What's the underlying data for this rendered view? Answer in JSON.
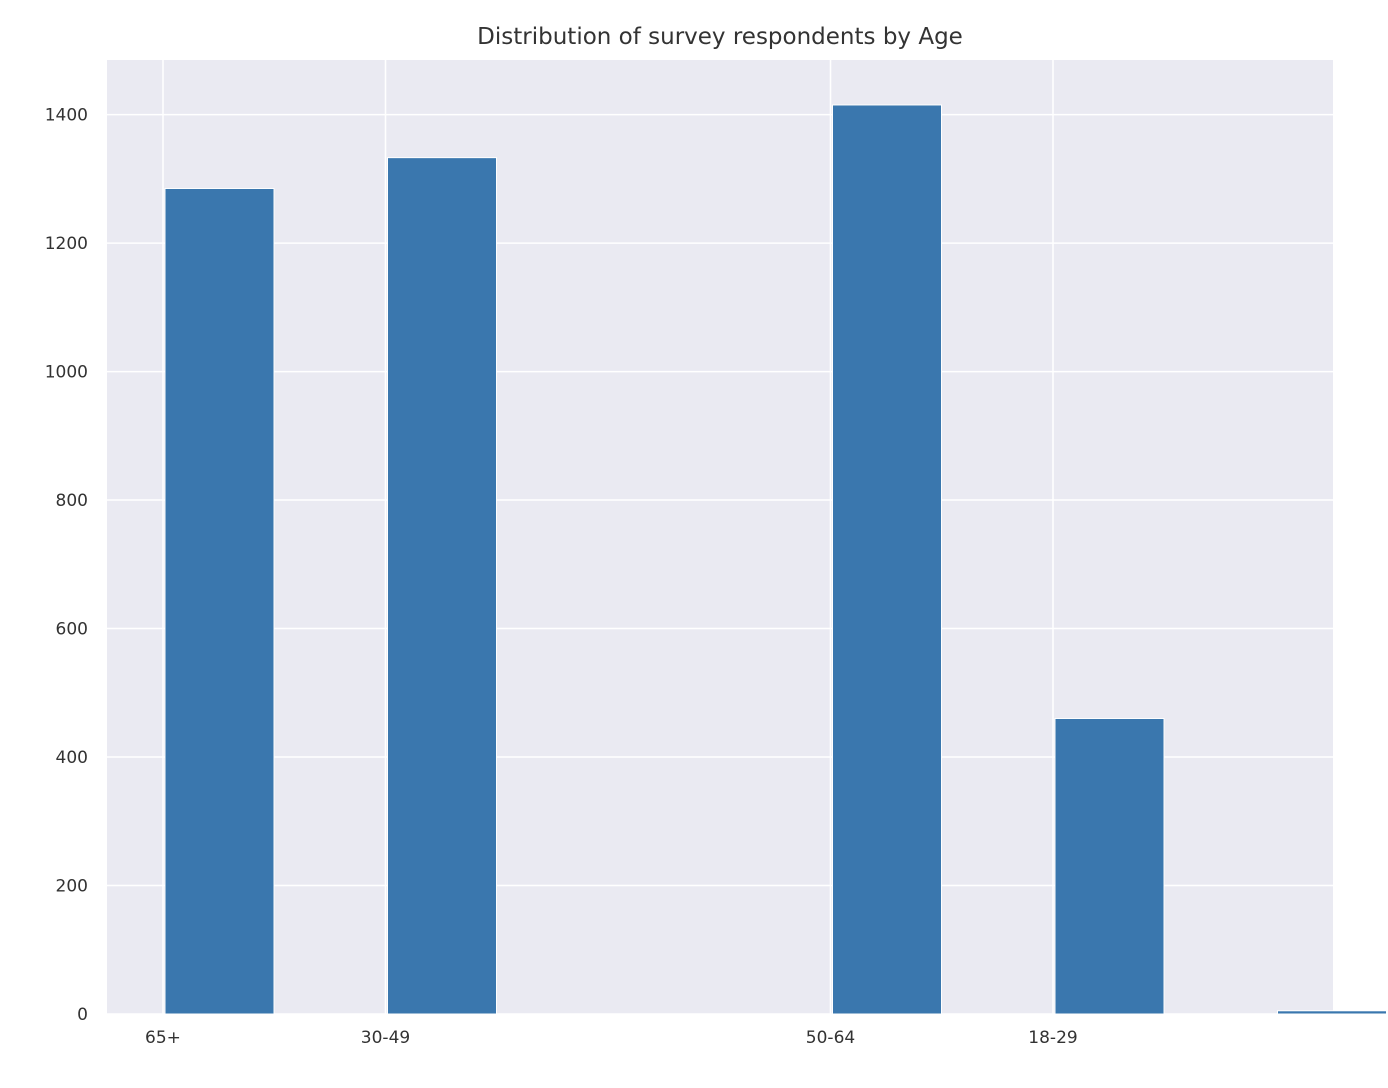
{
  "chart_data": {
    "type": "bar",
    "title": "Distribution of survey respondents by Age",
    "xlabel": "",
    "ylabel": "",
    "bins": [
      {
        "label": "65+",
        "value": 1285
      },
      {
        "label": "30-49",
        "value": 1333
      },
      {
        "label": "",
        "value": 0
      },
      {
        "label": "50-64",
        "value": 1415
      },
      {
        "label": "18-29",
        "value": 460
      },
      {
        "label": "",
        "value": 5
      }
    ],
    "xticks": [
      "65+",
      "30-49",
      "50-64",
      "18-29"
    ],
    "yticks": [
      0,
      200,
      400,
      600,
      800,
      1000,
      1200,
      1400
    ],
    "ylim": [
      0,
      1485
    ],
    "grid": true,
    "colors": {
      "bar": "#3a77ae",
      "axes_background": "#eaeaf2",
      "grid": "#ffffff",
      "text": "#333333"
    }
  }
}
